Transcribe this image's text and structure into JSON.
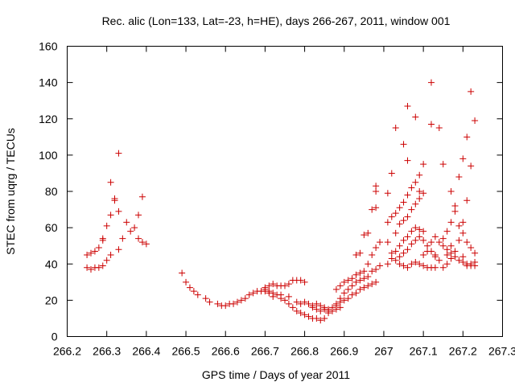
{
  "chart_data": {
    "type": "scatter",
    "title": "Rec. alic (Lon=133, Lat=-23, h=HE), days 266-267, 2011, window 001",
    "xlabel": "GPS time / Days of year 2011",
    "ylabel": "STEC from uqrg / TECUs",
    "xlim": [
      266.2,
      267.3
    ],
    "ylim": [
      0,
      160
    ],
    "xticks": [
      "266.2",
      "266.3",
      "266.4",
      "266.5",
      "266.6",
      "266.7",
      "266.8",
      "266.9",
      "267",
      "267.1",
      "267.2",
      "267.3"
    ],
    "xtick_values": [
      266.2,
      266.3,
      266.4,
      266.5,
      266.6,
      266.7,
      266.8,
      266.9,
      267.0,
      267.1,
      267.2,
      267.3
    ],
    "yticks": [
      "0",
      "20",
      "40",
      "60",
      "80",
      "100",
      "120",
      "140",
      "160"
    ],
    "ytick_values": [
      0,
      20,
      40,
      60,
      80,
      100,
      120,
      140,
      160
    ],
    "grid": false,
    "marker": "+",
    "marker_color": "#cc0000",
    "series": [
      {
        "points": [
          [
            266.25,
            45
          ],
          [
            266.26,
            46
          ],
          [
            266.27,
            47
          ],
          [
            266.28,
            49
          ],
          [
            266.29,
            53
          ],
          [
            266.29,
            54
          ],
          [
            266.3,
            61
          ],
          [
            266.31,
            67
          ],
          [
            266.32,
            75
          ],
          [
            266.32,
            76
          ],
          [
            266.33,
            69
          ],
          [
            266.33,
            101
          ],
          [
            266.31,
            85
          ],
          [
            266.35,
            63
          ],
          [
            266.36,
            58
          ],
          [
            266.37,
            60
          ],
          [
            266.38,
            67
          ],
          [
            266.39,
            77
          ],
          [
            266.38,
            54
          ],
          [
            266.39,
            52
          ],
          [
            266.4,
            51
          ],
          [
            266.25,
            38
          ],
          [
            266.26,
            37
          ],
          [
            266.27,
            38
          ],
          [
            266.28,
            38
          ],
          [
            266.29,
            39
          ],
          [
            266.3,
            42
          ],
          [
            266.31,
            45
          ],
          [
            266.33,
            48
          ],
          [
            266.34,
            54
          ],
          [
            266.49,
            35
          ],
          [
            266.5,
            30
          ],
          [
            266.51,
            27
          ],
          [
            266.52,
            25
          ],
          [
            266.53,
            23
          ],
          [
            266.55,
            21
          ],
          [
            266.56,
            19
          ],
          [
            266.58,
            18
          ],
          [
            266.59,
            17
          ],
          [
            266.6,
            17
          ],
          [
            266.61,
            18
          ],
          [
            266.62,
            18
          ],
          [
            266.63,
            19
          ],
          [
            266.64,
            20
          ],
          [
            266.65,
            21
          ],
          [
            266.66,
            23
          ],
          [
            266.67,
            24
          ],
          [
            266.68,
            25
          ],
          [
            266.69,
            25
          ],
          [
            266.7,
            26
          ],
          [
            266.7,
            25
          ],
          [
            266.71,
            24
          ],
          [
            266.71,
            28
          ],
          [
            266.72,
            29
          ],
          [
            266.73,
            28
          ],
          [
            266.74,
            28
          ],
          [
            266.75,
            28
          ],
          [
            266.76,
            29
          ],
          [
            266.77,
            31
          ],
          [
            266.78,
            31
          ],
          [
            266.79,
            31
          ],
          [
            266.8,
            30
          ],
          [
            266.7,
            27
          ],
          [
            266.71,
            25
          ],
          [
            266.72,
            24
          ],
          [
            266.73,
            23
          ],
          [
            266.74,
            21
          ],
          [
            266.75,
            20
          ],
          [
            266.76,
            18
          ],
          [
            266.77,
            16
          ],
          [
            266.78,
            14
          ],
          [
            266.79,
            13
          ],
          [
            266.8,
            12
          ],
          [
            266.81,
            11
          ],
          [
            266.82,
            10
          ],
          [
            266.83,
            10
          ],
          [
            266.84,
            9
          ],
          [
            266.85,
            10
          ],
          [
            266.72,
            22
          ],
          [
            266.74,
            23
          ],
          [
            266.76,
            22
          ],
          [
            266.78,
            19
          ],
          [
            266.79,
            18
          ],
          [
            266.8,
            19
          ],
          [
            266.81,
            18
          ],
          [
            266.82,
            16
          ],
          [
            266.83,
            15
          ],
          [
            266.84,
            14
          ],
          [
            266.85,
            15
          ],
          [
            266.86,
            14
          ],
          [
            266.86,
            13
          ],
          [
            266.87,
            14
          ],
          [
            266.88,
            15
          ],
          [
            266.89,
            16
          ],
          [
            266.88,
            17
          ],
          [
            266.89,
            19
          ],
          [
            266.9,
            20
          ],
          [
            266.91,
            21
          ],
          [
            266.92,
            23
          ],
          [
            266.93,
            24
          ],
          [
            266.94,
            26
          ],
          [
            266.95,
            27
          ],
          [
            266.96,
            28
          ],
          [
            266.97,
            29
          ],
          [
            266.98,
            30
          ],
          [
            266.82,
            17
          ],
          [
            266.83,
            18
          ],
          [
            266.84,
            17
          ],
          [
            266.85,
            16
          ],
          [
            266.86,
            15
          ],
          [
            266.87,
            16
          ],
          [
            266.88,
            18
          ],
          [
            266.89,
            21
          ],
          [
            266.9,
            24
          ],
          [
            266.91,
            26
          ],
          [
            266.92,
            28
          ],
          [
            266.93,
            30
          ],
          [
            266.94,
            31
          ],
          [
            266.95,
            32
          ],
          [
            266.96,
            33
          ],
          [
            266.97,
            36
          ],
          [
            266.98,
            37
          ],
          [
            266.99,
            39
          ],
          [
            266.88,
            26
          ],
          [
            266.89,
            28
          ],
          [
            266.9,
            30
          ],
          [
            266.91,
            31
          ],
          [
            266.92,
            32
          ],
          [
            266.93,
            34
          ],
          [
            266.94,
            35
          ],
          [
            266.95,
            36
          ],
          [
            266.96,
            40
          ],
          [
            266.97,
            45
          ],
          [
            266.98,
            49
          ],
          [
            266.99,
            52
          ],
          [
            266.93,
            45
          ],
          [
            266.94,
            46
          ],
          [
            266.95,
            56
          ],
          [
            266.96,
            57
          ],
          [
            266.97,
            70
          ],
          [
            266.98,
            71
          ],
          [
            266.98,
            80
          ],
          [
            266.98,
            83
          ],
          [
            267.01,
            40
          ],
          [
            267.02,
            43
          ],
          [
            267.03,
            47
          ],
          [
            267.04,
            50
          ],
          [
            267.05,
            53
          ],
          [
            267.06,
            55
          ],
          [
            267.07,
            58
          ],
          [
            267.08,
            60
          ],
          [
            267.09,
            59
          ],
          [
            267.1,
            58
          ],
          [
            267.01,
            63
          ],
          [
            267.02,
            66
          ],
          [
            267.03,
            68
          ],
          [
            267.04,
            71
          ],
          [
            267.05,
            74
          ],
          [
            267.06,
            78
          ],
          [
            267.07,
            82
          ],
          [
            267.08,
            85
          ],
          [
            267.09,
            80
          ],
          [
            267.1,
            79
          ],
          [
            267.01,
            79
          ],
          [
            267.02,
            90
          ],
          [
            267.03,
            115
          ],
          [
            267.05,
            106
          ],
          [
            267.06,
            97
          ],
          [
            267.06,
            127
          ],
          [
            267.08,
            121
          ],
          [
            267.09,
            89
          ],
          [
            267.1,
            95
          ],
          [
            267.12,
            140
          ],
          [
            267.12,
            117
          ],
          [
            267.14,
            115
          ],
          [
            267.15,
            95
          ],
          [
            267.01,
            52
          ],
          [
            267.02,
            46
          ],
          [
            267.03,
            42
          ],
          [
            267.04,
            40
          ],
          [
            267.05,
            39
          ],
          [
            267.06,
            38
          ],
          [
            267.07,
            40
          ],
          [
            267.08,
            41
          ],
          [
            267.09,
            40
          ],
          [
            267.1,
            39
          ],
          [
            267.11,
            38
          ],
          [
            267.12,
            38
          ],
          [
            267.13,
            38
          ],
          [
            267.03,
            57
          ],
          [
            267.04,
            62
          ],
          [
            267.05,
            64
          ],
          [
            267.06,
            66
          ],
          [
            267.07,
            70
          ],
          [
            267.08,
            73
          ],
          [
            267.09,
            76
          ],
          [
            267.04,
            44
          ],
          [
            267.05,
            46
          ],
          [
            267.06,
            48
          ],
          [
            267.07,
            51
          ],
          [
            267.08,
            53
          ],
          [
            267.09,
            55
          ],
          [
            267.1,
            53
          ],
          [
            267.11,
            50
          ],
          [
            267.12,
            47
          ],
          [
            267.13,
            45
          ],
          [
            267.1,
            45
          ],
          [
            267.11,
            47
          ],
          [
            267.12,
            52
          ],
          [
            267.13,
            55
          ],
          [
            267.14,
            52
          ],
          [
            267.15,
            50
          ],
          [
            267.16,
            48
          ],
          [
            267.17,
            46
          ],
          [
            267.18,
            44
          ],
          [
            267.19,
            42
          ],
          [
            267.2,
            41
          ],
          [
            267.21,
            40
          ],
          [
            267.22,
            39
          ],
          [
            267.23,
            39
          ],
          [
            267.15,
            54
          ],
          [
            267.16,
            58
          ],
          [
            267.17,
            63
          ],
          [
            267.18,
            69
          ],
          [
            267.18,
            72
          ],
          [
            267.19,
            61
          ],
          [
            267.2,
            57
          ],
          [
            267.21,
            52
          ],
          [
            267.22,
            49
          ],
          [
            267.23,
            46
          ],
          [
            267.17,
            80
          ],
          [
            267.19,
            88
          ],
          [
            267.2,
            98
          ],
          [
            267.21,
            110
          ],
          [
            267.22,
            135
          ],
          [
            267.23,
            119
          ],
          [
            267.22,
            94
          ],
          [
            267.21,
            75
          ],
          [
            267.2,
            63
          ],
          [
            267.19,
            53
          ],
          [
            267.18,
            47
          ],
          [
            267.17,
            43
          ],
          [
            267.16,
            40
          ],
          [
            267.15,
            38
          ],
          [
            267.16,
            45
          ],
          [
            267.17,
            50
          ],
          [
            267.14,
            42
          ],
          [
            267.13,
            44
          ],
          [
            267.2,
            44
          ],
          [
            267.21,
            39
          ],
          [
            267.22,
            40
          ],
          [
            267.23,
            41
          ]
        ]
      }
    ]
  }
}
